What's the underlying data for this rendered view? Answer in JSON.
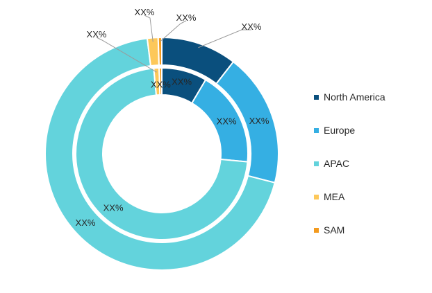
{
  "chart_data": {
    "type": "pie",
    "subtype": "nested-donut",
    "categories": [
      "North America",
      "Europe",
      "APAC",
      "MEA",
      "SAM"
    ],
    "colors": [
      "#0a4f7d",
      "#35afe3",
      "#63d3dc",
      "#fdc85a",
      "#f39a1e"
    ],
    "series": [
      {
        "ring": "outer",
        "values": [
          10.5,
          18.5,
          69.0,
          1.5,
          0.5
        ],
        "labels": [
          "XX%",
          "XX%",
          "XX%",
          "XX%",
          "XX%"
        ]
      },
      {
        "ring": "inner",
        "values": [
          8.5,
          18.0,
          72.0,
          1.0,
          0.5
        ],
        "labels": [
          "XX%",
          "XX%",
          "XX%",
          "XX%",
          "XX%"
        ]
      }
    ],
    "legend_position": "right"
  },
  "legend": {
    "items": [
      {
        "label": "North America",
        "color": "#0a4f7d"
      },
      {
        "label": "Europe",
        "color": "#35afe3"
      },
      {
        "label": "APAC",
        "color": "#63d3dc"
      },
      {
        "label": "MEA",
        "color": "#fdc85a"
      },
      {
        "label": "SAM",
        "color": "#f39a1e"
      }
    ]
  }
}
